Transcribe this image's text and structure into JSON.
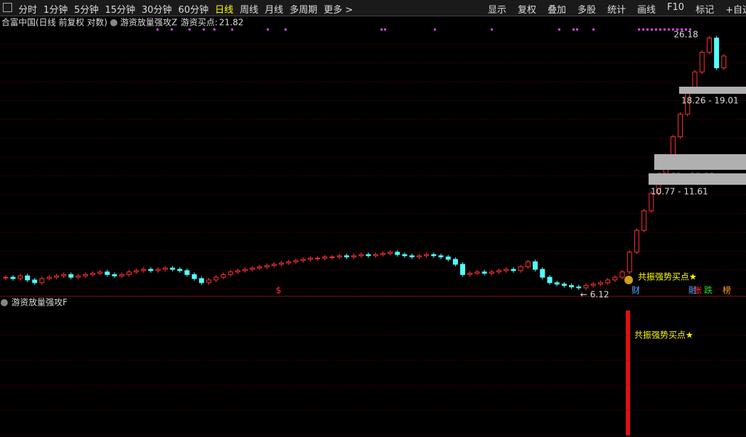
{
  "toolbar": {
    "left": [
      "分时",
      "1分钟",
      "5分钟",
      "15分钟",
      "30分钟",
      "60分钟",
      "日线",
      "周线",
      "月线",
      "多周期",
      "更多 >"
    ],
    "active": "日线",
    "right": [
      "显示",
      "复权",
      "叠加",
      "多股",
      "统计",
      "画线",
      "F10",
      "标记",
      "+自选"
    ]
  },
  "header": {
    "stock": "合富中国(日线 前复权 对数)",
    "indicator": "游资放量强攻Z",
    "buy_label": "游资买点:",
    "buy_value": 21.82
  },
  "price_chart": {
    "log_scale": true,
    "closes": [
      6.5,
      6.45,
      6.55,
      6.4,
      6.3,
      6.45,
      6.5,
      6.55,
      6.6,
      6.5,
      6.55,
      6.6,
      6.65,
      6.7,
      6.6,
      6.55,
      6.6,
      6.7,
      6.75,
      6.8,
      6.75,
      6.8,
      6.85,
      6.8,
      6.75,
      6.6,
      6.45,
      6.3,
      6.4,
      6.5,
      6.6,
      6.7,
      6.75,
      6.8,
      6.85,
      6.9,
      6.95,
      7.0,
      7.05,
      7.1,
      7.15,
      7.2,
      7.25,
      7.25,
      7.3,
      7.3,
      7.35,
      7.3,
      7.35,
      7.4,
      7.35,
      7.4,
      7.45,
      7.5,
      7.4,
      7.35,
      7.3,
      7.35,
      7.4,
      7.35,
      7.3,
      7.2,
      7.0,
      6.6,
      6.65,
      6.7,
      6.65,
      6.7,
      6.75,
      6.8,
      6.75,
      6.9,
      7.1,
      6.8,
      6.5,
      6.3,
      6.25,
      6.2,
      6.15,
      6.12,
      6.2,
      6.25,
      6.3,
      6.4,
      6.5,
      6.7,
      7.5,
      8.5,
      9.5,
      10.5,
      11.6,
      13.0,
      14.5,
      16.5,
      19.0,
      21.0,
      23.5,
      25.5,
      21.5,
      23.0
    ],
    "high_label": 26.18,
    "low_arrow": "←",
    "low_label": 6.12,
    "zones": [
      "18.26 - 19.01",
      "11.85 - 13.00",
      "10.77 - 11.61"
    ],
    "signal_text": "共振强势买点★",
    "marker_dollar": "$",
    "marker_cai": "财",
    "tags": [
      "融",
      "张",
      "跌",
      "榜"
    ]
  },
  "lower_panel": {
    "title": "游资放量强攻F",
    "signal_text": "共振强势买点★"
  }
}
